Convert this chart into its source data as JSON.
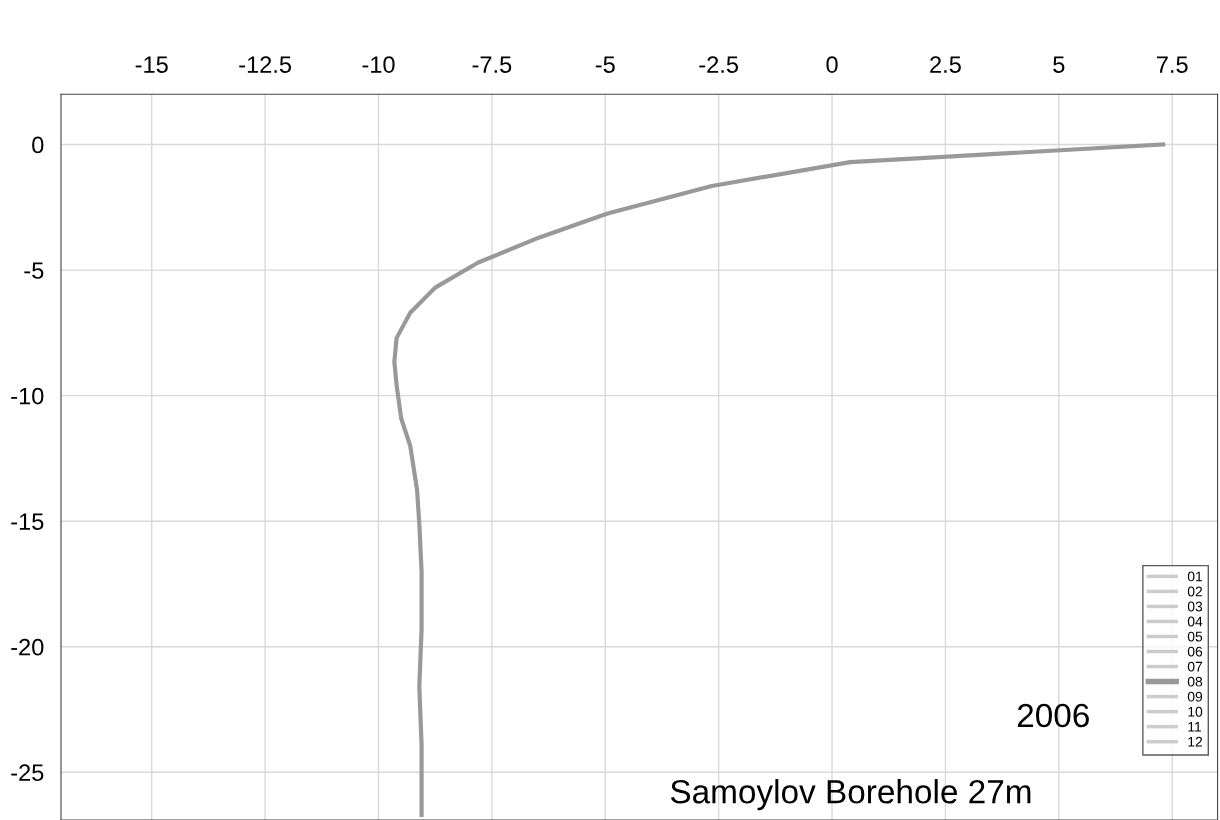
{
  "chart_data": {
    "type": "line",
    "xlim": [
      -17.0,
      8.5
    ],
    "xticks": [
      -15,
      -12.5,
      -10,
      -7.5,
      -5,
      -2.5,
      0,
      2.5,
      5,
      7.5
    ],
    "ylim": [
      -26.9,
      2.0
    ],
    "yticks": [
      0,
      -5,
      -10,
      -15,
      -20,
      -25
    ],
    "grid": true,
    "legend": "bottom right",
    "annotations": [
      "2006",
      "Samoylov Borehole 27m"
    ],
    "series": [
      {
        "name": "01",
        "color": "#cccccc",
        "x": [
          null
        ],
        "values": [
          null
        ]
      },
      {
        "name": "02",
        "color": "#cccccc",
        "x": [
          null
        ],
        "values": [
          null
        ]
      },
      {
        "name": "03",
        "color": "#cccccc",
        "x": [
          null
        ],
        "values": [
          null
        ]
      },
      {
        "name": "04",
        "color": "#cccccc",
        "x": [
          null
        ],
        "values": [
          null
        ]
      },
      {
        "name": "05",
        "color": "#cccccc",
        "x": [
          null
        ],
        "values": [
          null
        ]
      },
      {
        "name": "06",
        "color": "#cccccc",
        "x": [
          null
        ],
        "values": [
          null
        ]
      },
      {
        "name": "07",
        "color": "#cccccc",
        "x": [
          null
        ],
        "values": [
          null
        ]
      },
      {
        "name": "08",
        "color": "#999999",
        "x": [
          7.3,
          0.4,
          -2.65,
          -4.95,
          -6.45,
          -7.8,
          -8.75,
          -9.3,
          -9.6,
          -9.65,
          -9.6,
          -9.5,
          -9.3,
          -9.15,
          -9.1,
          -9.05,
          -9.05,
          -9.1,
          -9.05,
          -9.05
        ],
        "values": [
          0,
          -0.7,
          -1.65,
          -2.75,
          -3.7,
          -4.7,
          -5.7,
          -6.7,
          -7.7,
          -8.65,
          -9.6,
          -10.9,
          -12.0,
          -13.75,
          -15.1,
          -17.0,
          -19.3,
          -21.6,
          -23.9,
          -26.7
        ]
      },
      {
        "name": "09",
        "color": "#cccccc",
        "x": [
          null
        ],
        "values": [
          null
        ]
      },
      {
        "name": "10",
        "color": "#cccccc",
        "x": [
          null
        ],
        "values": [
          null
        ]
      },
      {
        "name": "11",
        "color": "#cccccc",
        "x": [
          null
        ],
        "values": [
          null
        ]
      },
      {
        "name": "12",
        "color": "#cccccc",
        "x": [
          null
        ],
        "values": [
          null
        ]
      }
    ]
  }
}
